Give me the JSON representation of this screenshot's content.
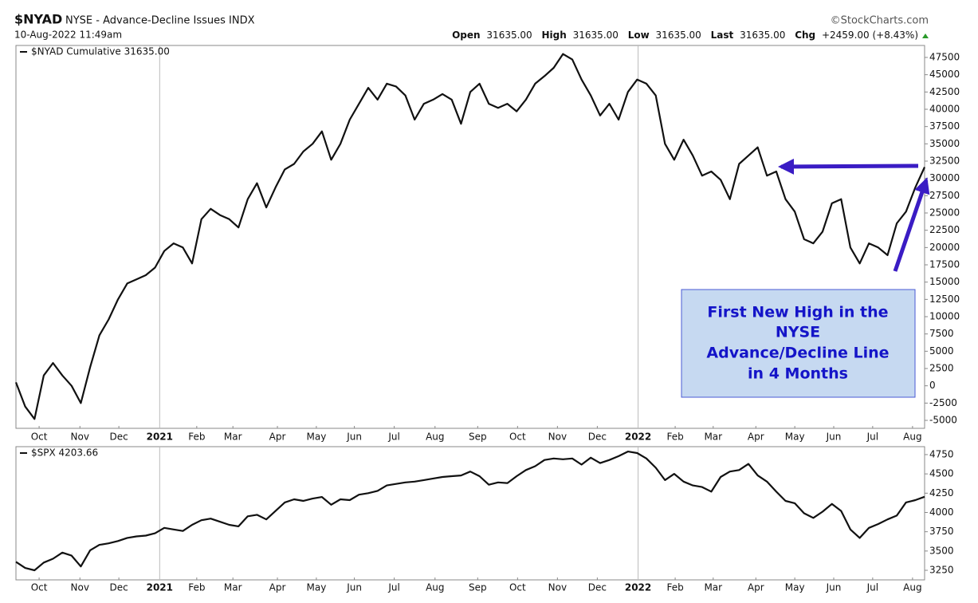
{
  "header": {
    "symbol": "$NYAD",
    "description": "NYSE - Advance-Decline Issues INDX",
    "source": "©StockCharts.com",
    "date": "10-Aug-2022 11:49am",
    "quote": [
      {
        "label": "Open",
        "value": "31635.00"
      },
      {
        "label": "High",
        "value": "31635.00"
      },
      {
        "label": "Low",
        "value": "31635.00"
      },
      {
        "label": "Last",
        "value": "31635.00"
      },
      {
        "label": "Chg",
        "value": "+2459.00 (+8.43%)"
      }
    ]
  },
  "chart_data": [
    {
      "type": "line",
      "color": "#111111",
      "series": [
        {
          "name": "$NYAD Cumulative 31635.00",
          "color": "#111111",
          "values": [
            500,
            -3000,
            -4800,
            1500,
            3300,
            1500,
            0,
            -2500,
            2700,
            7300,
            9600,
            12500,
            14800,
            15400,
            16000,
            17100,
            19500,
            20600,
            20000,
            17700,
            24100,
            25600,
            24700,
            24100,
            22900,
            27000,
            29300,
            25800,
            28700,
            31300,
            32100,
            33900,
            35000,
            36800,
            32700,
            35000,
            38500,
            40800,
            43100,
            41400,
            43700,
            43300,
            42000,
            38500,
            40800,
            41400,
            42200,
            41400,
            37900,
            42500,
            43700,
            40800,
            40200,
            40800,
            39700,
            41400,
            43700,
            44800,
            46000,
            48000,
            47200,
            44300,
            42000,
            39100,
            40800,
            38500,
            42500,
            44300,
            43700,
            42000,
            35000,
            32700,
            35600,
            33300,
            30400,
            31000,
            29800,
            27000,
            32100,
            33300,
            34500,
            30400,
            31000,
            27000,
            25200,
            21200,
            20600,
            22300,
            26400,
            27000,
            20000,
            17700,
            20600,
            20000,
            18900,
            23500,
            25200,
            28700,
            31635
          ]
        }
      ],
      "xlim": [
        0,
        98
      ],
      "xticks": [
        {
          "value": 2.5,
          "label": "Oct"
        },
        {
          "value": 6.9,
          "label": "Nov"
        },
        {
          "value": 11.1,
          "label": "Dec"
        },
        {
          "value": 15.5,
          "label": "2021"
        },
        {
          "value": 19.5,
          "label": "Feb"
        },
        {
          "value": 23.4,
          "label": "Mar"
        },
        {
          "value": 28.2,
          "label": "Apr"
        },
        {
          "value": 32.4,
          "label": "May"
        },
        {
          "value": 36.5,
          "label": "Jun"
        },
        {
          "value": 40.8,
          "label": "Jul"
        },
        {
          "value": 45.2,
          "label": "Aug"
        },
        {
          "value": 49.8,
          "label": "Sep"
        },
        {
          "value": 54.1,
          "label": "Oct"
        },
        {
          "value": 58.4,
          "label": "Nov"
        },
        {
          "value": 62.7,
          "label": "Dec"
        },
        {
          "value": 67.1,
          "label": "2022"
        },
        {
          "value": 71.1,
          "label": "Feb"
        },
        {
          "value": 75.2,
          "label": "Mar"
        },
        {
          "value": 79.8,
          "label": "Apr"
        },
        {
          "value": 84.0,
          "label": "May"
        },
        {
          "value": 88.2,
          "label": "Jun"
        },
        {
          "value": 92.4,
          "label": "Jul"
        },
        {
          "value": 96.7,
          "label": "Aug"
        }
      ],
      "ylim": [
        -6150,
        49230
      ],
      "yticks": [
        -5000,
        -2500,
        0,
        2500,
        5000,
        7500,
        10000,
        12500,
        15000,
        17500,
        20000,
        22500,
        25000,
        27500,
        30000,
        32500,
        35000,
        37500,
        40000,
        42500,
        45000,
        47500
      ],
      "grid": false,
      "annotation": [
        "First New High in the",
        "NYSE",
        "Advance/Decline Line",
        "in 4 Months"
      ]
    },
    {
      "type": "line",
      "color": "#111111",
      "series": [
        {
          "name": "$SPX 4203.66",
          "color": "#111111",
          "values": [
            3360,
            3280,
            3250,
            3350,
            3400,
            3480,
            3440,
            3300,
            3510,
            3580,
            3600,
            3630,
            3670,
            3690,
            3700,
            3730,
            3800,
            3780,
            3760,
            3840,
            3900,
            3920,
            3880,
            3840,
            3820,
            3950,
            3970,
            3910,
            4020,
            4130,
            4170,
            4150,
            4180,
            4200,
            4100,
            4170,
            4160,
            4230,
            4250,
            4280,
            4350,
            4370,
            4390,
            4400,
            4420,
            4440,
            4460,
            4470,
            4480,
            4530,
            4470,
            4360,
            4390,
            4380,
            4470,
            4550,
            4600,
            4680,
            4700,
            4690,
            4700,
            4620,
            4710,
            4640,
            4680,
            4730,
            4790,
            4770,
            4700,
            4580,
            4420,
            4500,
            4400,
            4350,
            4330,
            4270,
            4460,
            4530,
            4550,
            4630,
            4480,
            4400,
            4270,
            4150,
            4120,
            3990,
            3930,
            4010,
            4110,
            4020,
            3780,
            3670,
            3800,
            3850,
            3910,
            3960,
            4130,
            4160,
            4203.66
          ]
        }
      ],
      "xlim": [
        0,
        98
      ],
      "xticks": [
        {
          "value": 2.5,
          "label": "Oct"
        },
        {
          "value": 6.9,
          "label": "Nov"
        },
        {
          "value": 11.1,
          "label": "Dec"
        },
        {
          "value": 15.5,
          "label": "2021"
        },
        {
          "value": 19.5,
          "label": "Feb"
        },
        {
          "value": 23.4,
          "label": "Mar"
        },
        {
          "value": 28.2,
          "label": "Apr"
        },
        {
          "value": 32.4,
          "label": "May"
        },
        {
          "value": 36.5,
          "label": "Jun"
        },
        {
          "value": 40.8,
          "label": "Jul"
        },
        {
          "value": 45.2,
          "label": "Aug"
        },
        {
          "value": 49.8,
          "label": "Sep"
        },
        {
          "value": 54.1,
          "label": "Oct"
        },
        {
          "value": 58.4,
          "label": "Nov"
        },
        {
          "value": 62.7,
          "label": "Dec"
        },
        {
          "value": 67.1,
          "label": "2022"
        },
        {
          "value": 71.1,
          "label": "Feb"
        },
        {
          "value": 75.2,
          "label": "Mar"
        },
        {
          "value": 79.8,
          "label": "Apr"
        },
        {
          "value": 84.0,
          "label": "May"
        },
        {
          "value": 88.2,
          "label": "Jun"
        },
        {
          "value": 92.4,
          "label": "Jul"
        },
        {
          "value": 96.7,
          "label": "Aug"
        }
      ],
      "ylim": [
        3126,
        4853
      ],
      "yticks": [
        3250,
        3500,
        3750,
        4000,
        4250,
        4500,
        4750
      ],
      "grid": false
    }
  ]
}
